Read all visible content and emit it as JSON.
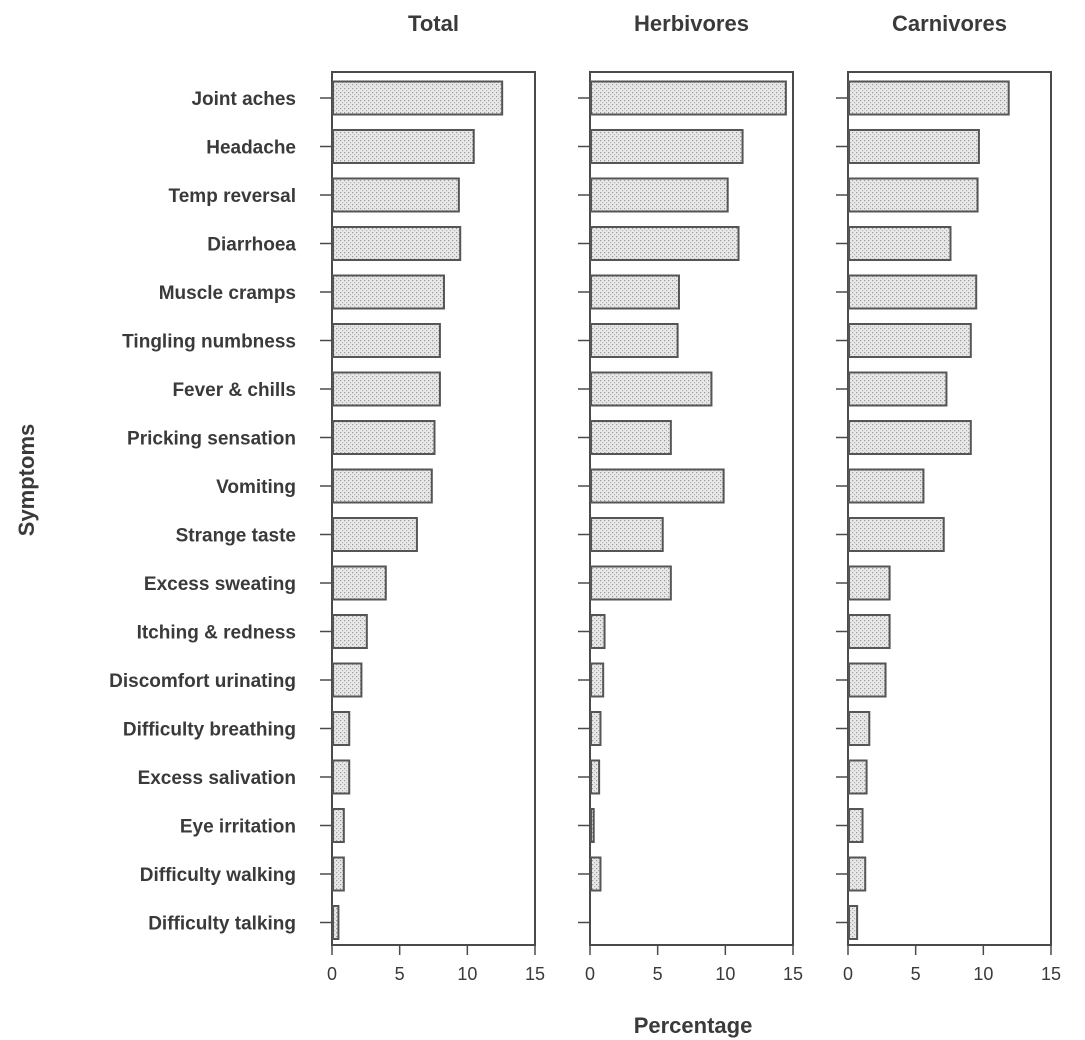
{
  "chart_data": {
    "type": "bar",
    "orientation": "horizontal",
    "ylabel": "Symptoms",
    "xlabel": "Percentage",
    "xlim": [
      0,
      15
    ],
    "xticks": [
      0,
      5,
      10,
      15
    ],
    "categories": [
      "Joint aches",
      "Headache",
      "Temp reversal",
      "Diarrhoea",
      "Muscle cramps",
      "Tingling numbness",
      "Fever & chills",
      "Pricking sensation",
      "Vomiting",
      "Strange taste",
      "Excess sweating",
      "Itching & redness",
      "Discomfort urinating",
      "Difficulty breathing",
      "Excess salivation",
      "Eye irritation",
      "Difficulty walking",
      "Difficulty talking"
    ],
    "panels": [
      {
        "title": "Total",
        "values": [
          12.5,
          10.4,
          9.3,
          9.4,
          8.2,
          7.9,
          7.9,
          7.5,
          7.3,
          6.2,
          3.9,
          2.5,
          2.1,
          1.2,
          1.2,
          0.8,
          0.8,
          0.4
        ]
      },
      {
        "title": "Herbivores",
        "values": [
          14.4,
          11.2,
          10.1,
          10.9,
          6.5,
          6.4,
          8.9,
          5.9,
          9.8,
          5.3,
          5.9,
          1.0,
          0.9,
          0.7,
          0.6,
          0.2,
          0.7,
          0.0
        ]
      },
      {
        "title": "Carnivores",
        "values": [
          11.8,
          9.6,
          9.5,
          7.5,
          9.4,
          9.0,
          7.2,
          9.0,
          5.5,
          7.0,
          3.0,
          3.0,
          2.7,
          1.5,
          1.3,
          1.0,
          1.2,
          0.6
        ]
      }
    ]
  }
}
